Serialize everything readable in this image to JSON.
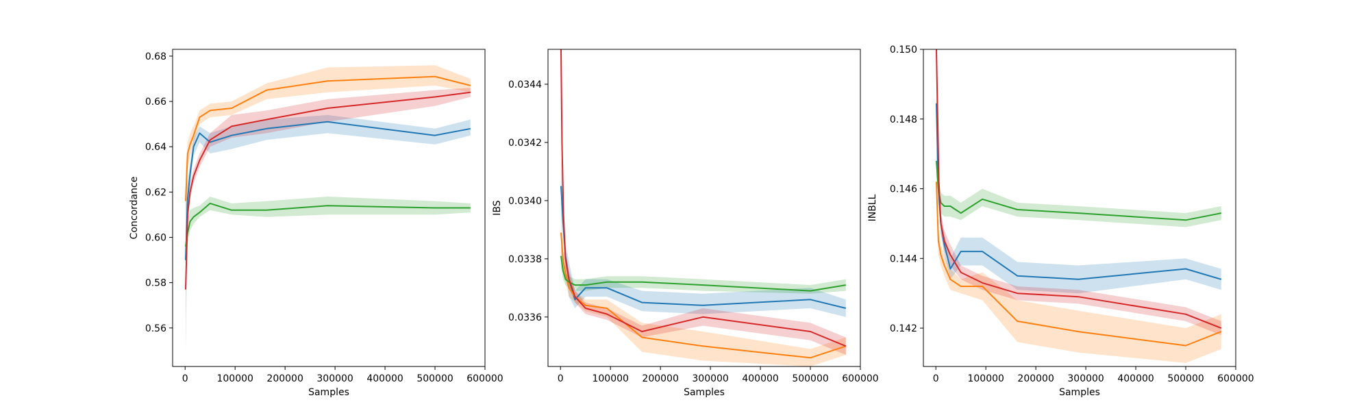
{
  "chart_data": [
    {
      "type": "line",
      "xlabel": "Samples",
      "ylabel": "Concordance",
      "xlim": [
        -25000,
        600000
      ],
      "ylim": [
        0.543,
        0.683
      ],
      "xticks": [
        0,
        100000,
        200000,
        300000,
        400000,
        500000,
        600000
      ],
      "xticklabels": [
        "0",
        "100000",
        "200000",
        "300000",
        "400000",
        "500000",
        "600000"
      ],
      "yticks": [
        0.56,
        0.58,
        0.6,
        0.62,
        0.64,
        0.66,
        0.68
      ],
      "yticklabels": [
        "0.56",
        "0.58",
        "0.60",
        "0.62",
        "0.64",
        "0.66",
        "0.68"
      ],
      "confidence_bands": true,
      "series": [
        {
          "color": "#1f77b4",
          "x": [
            1000,
            5000,
            10000,
            17000,
            29000,
            50000,
            93000,
            163000,
            285000,
            500000,
            571000
          ],
          "y": [
            0.59,
            0.617,
            0.628,
            0.64,
            0.646,
            0.642,
            0.645,
            0.648,
            0.651,
            0.645,
            0.648
          ],
          "lower": [
            0.549,
            0.609,
            0.623,
            0.636,
            0.642,
            0.637,
            0.639,
            0.643,
            0.646,
            0.641,
            0.645
          ],
          "upper": [
            0.62,
            0.624,
            0.633,
            0.644,
            0.649,
            0.646,
            0.649,
            0.652,
            0.654,
            0.648,
            0.652
          ]
        },
        {
          "color": "#ff7f0e",
          "x": [
            1000,
            5000,
            10000,
            17000,
            29000,
            50000,
            93000,
            163000,
            285000,
            500000,
            571000
          ],
          "y": [
            0.616,
            0.637,
            0.641,
            0.645,
            0.653,
            0.656,
            0.657,
            0.665,
            0.669,
            0.671,
            0.667
          ],
          "lower": [
            0.598,
            0.631,
            0.636,
            0.641,
            0.65,
            0.653,
            0.654,
            0.661,
            0.664,
            0.667,
            0.664
          ],
          "upper": [
            0.63,
            0.642,
            0.646,
            0.649,
            0.656,
            0.659,
            0.66,
            0.668,
            0.675,
            0.676,
            0.67
          ]
        },
        {
          "color": "#2ca02c",
          "x": [
            1000,
            5000,
            10000,
            17000,
            29000,
            50000,
            93000,
            163000,
            285000,
            500000,
            571000
          ],
          "y": [
            0.596,
            0.602,
            0.607,
            0.609,
            0.611,
            0.615,
            0.612,
            0.612,
            0.614,
            0.613,
            0.613
          ],
          "lower": [
            0.588,
            0.597,
            0.603,
            0.606,
            0.609,
            0.612,
            0.61,
            0.609,
            0.61,
            0.61,
            0.611
          ],
          "upper": [
            0.603,
            0.608,
            0.612,
            0.613,
            0.614,
            0.618,
            0.615,
            0.616,
            0.618,
            0.616,
            0.615
          ]
        },
        {
          "color": "#d62728",
          "x": [
            1000,
            5000,
            10000,
            17000,
            29000,
            50000,
            93000,
            163000,
            285000,
            500000,
            571000
          ],
          "y": [
            0.577,
            0.61,
            0.62,
            0.627,
            0.634,
            0.643,
            0.649,
            0.652,
            0.657,
            0.662,
            0.664
          ],
          "lower": [
            0.573,
            0.606,
            0.617,
            0.624,
            0.631,
            0.64,
            0.644,
            0.646,
            0.651,
            0.658,
            0.662
          ],
          "upper": [
            0.582,
            0.614,
            0.624,
            0.63,
            0.637,
            0.646,
            0.654,
            0.656,
            0.661,
            0.665,
            0.666
          ]
        }
      ]
    },
    {
      "type": "line",
      "xlabel": "Samples",
      "ylabel": "IBS",
      "xlim": [
        -25000,
        600000
      ],
      "ylim": [
        0.03343,
        0.03452
      ],
      "xticks": [
        0,
        100000,
        200000,
        300000,
        400000,
        500000,
        600000
      ],
      "xticklabels": [
        "0",
        "100000",
        "200000",
        "300000",
        "400000",
        "500000",
        "600000"
      ],
      "yticks": [
        0.0336,
        0.0338,
        0.034,
        0.0342,
        0.0344
      ],
      "yticklabels": [
        "0.0336",
        "0.0338",
        "0.0340",
        "0.0342",
        "0.0344"
      ],
      "confidence_bands": true,
      "series": [
        {
          "color": "#1f77b4",
          "x": [
            1000,
            5000,
            10000,
            17000,
            29000,
            50000,
            93000,
            163000,
            285000,
            500000,
            571000
          ],
          "y": [
            0.03405,
            0.03393,
            0.03381,
            0.03373,
            0.03366,
            0.0337,
            0.0337,
            0.03365,
            0.03364,
            0.03366,
            0.03363
          ],
          "lower": [
            0.03395,
            0.03387,
            0.03376,
            0.03367,
            0.03363,
            0.03367,
            0.03367,
            0.03362,
            0.03361,
            0.03363,
            0.0336
          ],
          "upper": [
            0.03416,
            0.03399,
            0.03386,
            0.03379,
            0.03369,
            0.03373,
            0.03373,
            0.03369,
            0.03368,
            0.0337,
            0.03366
          ]
        },
        {
          "color": "#ff7f0e",
          "x": [
            1000,
            5000,
            10000,
            17000,
            29000,
            50000,
            93000,
            163000,
            285000,
            500000,
            571000
          ],
          "y": [
            0.03389,
            0.0338,
            0.03375,
            0.0337,
            0.03367,
            0.03364,
            0.03363,
            0.03353,
            0.0335,
            0.03346,
            0.0335
          ],
          "lower": [
            0.03383,
            0.03376,
            0.03372,
            0.03367,
            0.03365,
            0.03362,
            0.0336,
            0.03348,
            0.03345,
            0.03343,
            0.03347
          ],
          "upper": [
            0.03395,
            0.03384,
            0.03378,
            0.03373,
            0.03369,
            0.03366,
            0.03366,
            0.03358,
            0.03355,
            0.03349,
            0.03353
          ]
        },
        {
          "color": "#2ca02c",
          "x": [
            1000,
            5000,
            10000,
            17000,
            29000,
            50000,
            93000,
            163000,
            285000,
            500000,
            571000
          ],
          "y": [
            0.03381,
            0.03376,
            0.03373,
            0.03372,
            0.03371,
            0.03371,
            0.03372,
            0.03372,
            0.03371,
            0.03369,
            0.03371
          ],
          "lower": [
            0.03377,
            0.03373,
            0.03371,
            0.0337,
            0.03369,
            0.03369,
            0.0337,
            0.0337,
            0.03369,
            0.03368,
            0.03369
          ],
          "upper": [
            0.03385,
            0.03379,
            0.03375,
            0.03374,
            0.03373,
            0.03373,
            0.03374,
            0.03374,
            0.03373,
            0.03371,
            0.03373
          ]
        },
        {
          "color": "#d62728",
          "x": [
            1000,
            3000,
            6000,
            10000,
            17000,
            29000,
            50000,
            93000,
            163000,
            285000,
            500000,
            571000
          ],
          "y": [
            0.03452,
            0.0342,
            0.03395,
            0.0338,
            0.03373,
            0.03367,
            0.03363,
            0.03361,
            0.03355,
            0.0336,
            0.03355,
            0.0335
          ],
          "lower": [
            0.03448,
            0.03414,
            0.03391,
            0.03377,
            0.0337,
            0.03365,
            0.03361,
            0.03359,
            0.03353,
            0.03357,
            0.03352,
            0.03347
          ],
          "upper": [
            0.03456,
            0.03426,
            0.03399,
            0.03383,
            0.03376,
            0.03369,
            0.03365,
            0.03363,
            0.03357,
            0.03363,
            0.03358,
            0.03353
          ]
        }
      ]
    },
    {
      "type": "line",
      "xlabel": "Samples",
      "ylabel": "INBLL",
      "xlim": [
        -25000,
        600000
      ],
      "ylim": [
        0.1409,
        0.15
      ],
      "xticks": [
        0,
        100000,
        200000,
        300000,
        400000,
        500000,
        600000
      ],
      "xticklabels": [
        "0",
        "100000",
        "200000",
        "300000",
        "400000",
        "500000",
        "600000"
      ],
      "yticks": [
        0.142,
        0.144,
        0.146,
        0.148,
        0.15
      ],
      "yticklabels": [
        "0.142",
        "0.144",
        "0.146",
        "0.148",
        "0.150"
      ],
      "confidence_bands": true,
      "series": [
        {
          "color": "#1f77b4",
          "x": [
            1000,
            5000,
            10000,
            17000,
            29000,
            50000,
            93000,
            163000,
            285000,
            500000,
            571000
          ],
          "y": [
            0.14845,
            0.146,
            0.145,
            0.1444,
            0.1437,
            0.1442,
            0.1442,
            0.1435,
            0.1434,
            0.1437,
            0.1434
          ],
          "lower": [
            0.148,
            0.1456,
            0.1447,
            0.1441,
            0.1434,
            0.1438,
            0.1438,
            0.1431,
            0.143,
            0.1434,
            0.1431
          ],
          "upper": [
            0.1489,
            0.1464,
            0.1453,
            0.1447,
            0.144,
            0.1446,
            0.1446,
            0.1439,
            0.1438,
            0.144,
            0.1437
          ]
        },
        {
          "color": "#ff7f0e",
          "x": [
            1000,
            5000,
            10000,
            17000,
            29000,
            50000,
            93000,
            163000,
            285000,
            500000,
            571000
          ],
          "y": [
            0.1462,
            0.1445,
            0.1441,
            0.1438,
            0.1434,
            0.1432,
            0.1432,
            0.1422,
            0.1419,
            0.1415,
            0.1419
          ],
          "lower": [
            0.1458,
            0.1441,
            0.1438,
            0.1435,
            0.1431,
            0.143,
            0.1428,
            0.1416,
            0.1413,
            0.141,
            0.1414
          ],
          "upper": [
            0.1466,
            0.1449,
            0.1444,
            0.1441,
            0.1437,
            0.1434,
            0.1436,
            0.1428,
            0.1425,
            0.142,
            0.1424
          ]
        },
        {
          "color": "#2ca02c",
          "x": [
            1000,
            5000,
            10000,
            17000,
            29000,
            50000,
            93000,
            163000,
            285000,
            500000,
            571000
          ],
          "y": [
            0.1468,
            0.146,
            0.1456,
            0.1455,
            0.1455,
            0.1453,
            0.1457,
            0.1454,
            0.1453,
            0.1451,
            0.1453
          ],
          "lower": [
            0.1464,
            0.1457,
            0.1453,
            0.1452,
            0.1452,
            0.1451,
            0.1455,
            0.1452,
            0.1451,
            0.1449,
            0.1451
          ],
          "upper": [
            0.1472,
            0.1463,
            0.1459,
            0.1458,
            0.1458,
            0.1456,
            0.146,
            0.1456,
            0.1455,
            0.1453,
            0.1455
          ]
        },
        {
          "color": "#d62728",
          "x": [
            1000,
            3000,
            6000,
            10000,
            17000,
            29000,
            50000,
            93000,
            163000,
            285000,
            500000,
            571000
          ],
          "y": [
            0.15,
            0.1485,
            0.1462,
            0.145,
            0.1445,
            0.1441,
            0.1436,
            0.1433,
            0.143,
            0.1429,
            0.1424,
            0.142
          ],
          "lower": [
            0.1497,
            0.1482,
            0.1459,
            0.1447,
            0.1442,
            0.1438,
            0.1434,
            0.1431,
            0.1428,
            0.1427,
            0.1422,
            0.1418
          ],
          "upper": [
            0.15,
            0.1488,
            0.1465,
            0.1453,
            0.1448,
            0.1444,
            0.1438,
            0.1435,
            0.1432,
            0.1431,
            0.1426,
            0.1422
          ]
        }
      ]
    }
  ]
}
